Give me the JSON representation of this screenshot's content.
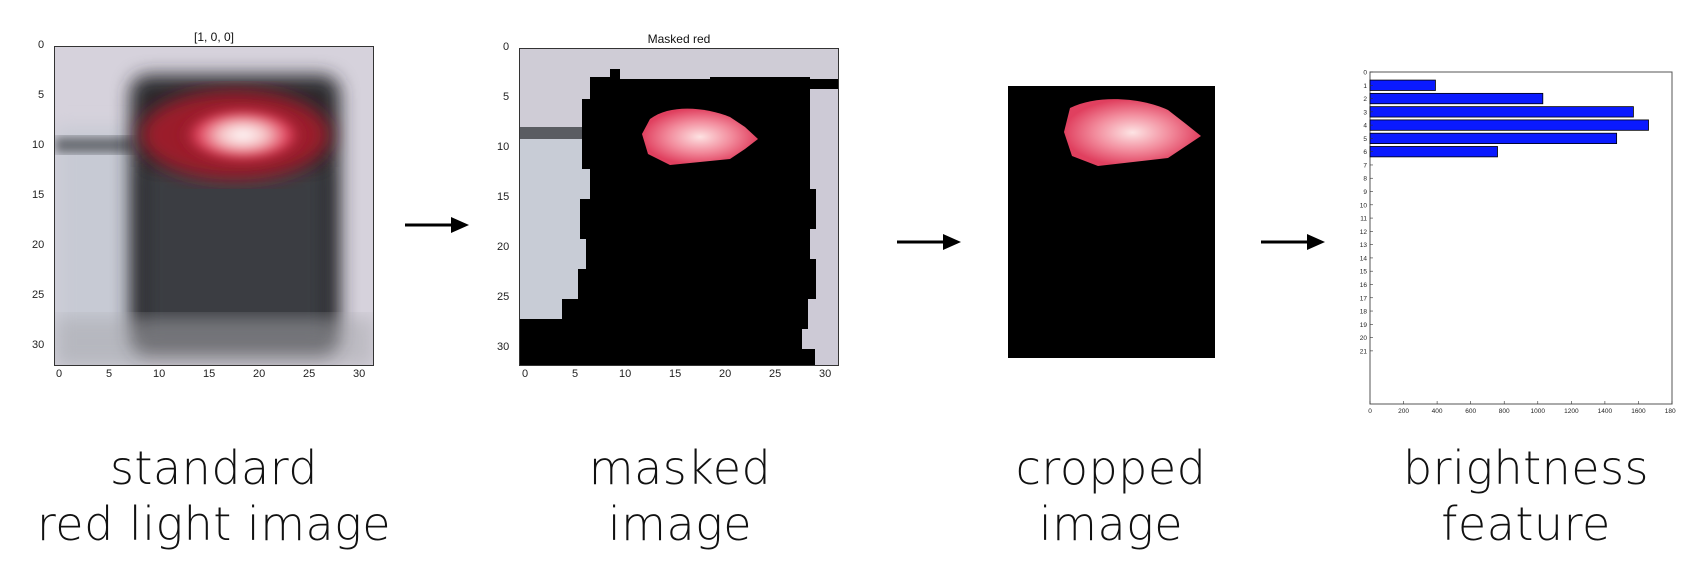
{
  "panels": [
    {
      "title": "[1, 0, 0]",
      "caption_line1": "standard",
      "caption_line2": "red light image",
      "yticks": [
        "0",
        "5",
        "10",
        "15",
        "20",
        "25",
        "30"
      ],
      "xticks": [
        "0",
        "5",
        "10",
        "15",
        "20",
        "25",
        "30"
      ]
    },
    {
      "title": "Masked red",
      "caption_line1": "masked",
      "caption_line2": "image",
      "yticks": [
        "0",
        "5",
        "10",
        "15",
        "20",
        "25",
        "30"
      ],
      "xticks": [
        "0",
        "5",
        "10",
        "15",
        "20",
        "25",
        "30"
      ]
    },
    {
      "title": "",
      "caption_line1": "cropped",
      "caption_line2": "image"
    },
    {
      "title": "",
      "caption_line1": "brightness",
      "caption_line2": "feature"
    }
  ],
  "chart_data": {
    "type": "bar",
    "orientation": "horizontal",
    "categories": [
      "1",
      "2",
      "3",
      "4",
      "5",
      "6"
    ],
    "values": [
      390,
      1030,
      1570,
      1660,
      1470,
      760
    ],
    "yticks": [
      "0",
      "1",
      "2",
      "3",
      "4",
      "5",
      "6",
      "7",
      "8",
      "9",
      "10",
      "11",
      "12",
      "13",
      "14",
      "15",
      "16",
      "17",
      "18",
      "19",
      "20",
      "21"
    ],
    "xticks": [
      "0",
      "200",
      "400",
      "600",
      "800",
      "1000",
      "1200",
      "1400",
      "1600",
      "1800"
    ],
    "xlim": [
      0,
      1800
    ],
    "ylim": [
      0,
      25
    ],
    "bar_color": "#0a1aff"
  },
  "colors": {
    "arrow": "#000000",
    "mask_black": "#000000",
    "light_glow": "#f08a9a"
  }
}
